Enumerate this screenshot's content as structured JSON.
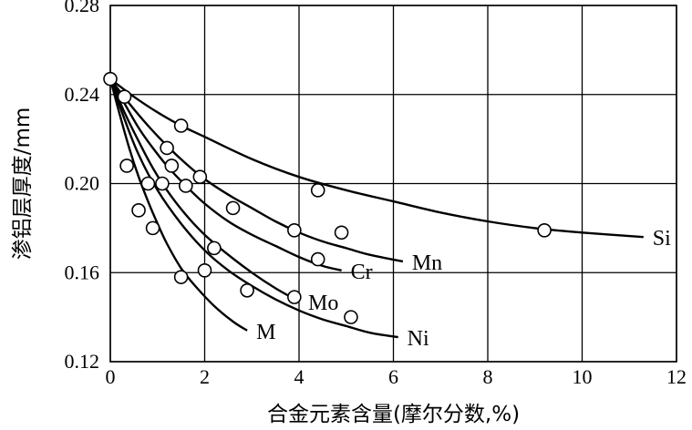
{
  "chart_data": {
    "type": "line",
    "xlabel": "合金元素含量(摩尔分数,%)",
    "ylabel": "渗铝层厚度/mm",
    "xlim": [
      0,
      12
    ],
    "ylim": [
      0.12,
      0.28
    ],
    "x_ticks": [
      "0",
      "2",
      "4",
      "6",
      "8",
      "10",
      "12"
    ],
    "y_ticks": [
      "0.12",
      "0.16",
      "0.20",
      "0.24",
      "0.28"
    ],
    "grid": true,
    "series": [
      {
        "name": "Si",
        "curve": [
          [
            0,
            0.247
          ],
          [
            0.5,
            0.239
          ],
          [
            1,
            0.232
          ],
          [
            1.5,
            0.226
          ],
          [
            2,
            0.221
          ],
          [
            3,
            0.211
          ],
          [
            4,
            0.203
          ],
          [
            5,
            0.197
          ],
          [
            6,
            0.192
          ],
          [
            7,
            0.187
          ],
          [
            8,
            0.183
          ],
          [
            9,
            0.18
          ],
          [
            10,
            0.178
          ],
          [
            11.3,
            0.176
          ]
        ],
        "points": [
          [
            0,
            0.247
          ],
          [
            1.5,
            0.226
          ],
          [
            4.4,
            0.197
          ],
          [
            9.2,
            0.179
          ]
        ]
      },
      {
        "name": "Mn",
        "curve": [
          [
            0,
            0.247
          ],
          [
            0.4,
            0.236
          ],
          [
            0.8,
            0.226
          ],
          [
            1.2,
            0.217
          ],
          [
            1.6,
            0.209
          ],
          [
            2,
            0.202
          ],
          [
            2.5,
            0.195
          ],
          [
            3,
            0.189
          ],
          [
            3.5,
            0.183
          ],
          [
            4,
            0.178
          ],
          [
            4.5,
            0.174
          ],
          [
            5,
            0.171
          ],
          [
            5.5,
            0.168
          ],
          [
            6.2,
            0.165
          ]
        ],
        "points": [
          [
            0.3,
            0.239
          ],
          [
            1.2,
            0.216
          ],
          [
            1.9,
            0.203
          ],
          [
            3.9,
            0.179
          ],
          [
            4.9,
            0.178
          ]
        ]
      },
      {
        "name": "Cr",
        "curve": [
          [
            0,
            0.247
          ],
          [
            0.3,
            0.236
          ],
          [
            0.6,
            0.225
          ],
          [
            0.9,
            0.216
          ],
          [
            1.2,
            0.208
          ],
          [
            1.6,
            0.199
          ],
          [
            2,
            0.191
          ],
          [
            2.5,
            0.183
          ],
          [
            3,
            0.177
          ],
          [
            3.5,
            0.172
          ],
          [
            4,
            0.167
          ],
          [
            4.5,
            0.163
          ],
          [
            4.9,
            0.161
          ]
        ],
        "points": [
          [
            1.3,
            0.208
          ],
          [
            1.6,
            0.199
          ],
          [
            2.6,
            0.189
          ],
          [
            4.4,
            0.166
          ]
        ]
      },
      {
        "name": "Mo",
        "curve": [
          [
            0,
            0.247
          ],
          [
            0.3,
            0.232
          ],
          [
            0.6,
            0.219
          ],
          [
            0.9,
            0.207
          ],
          [
            1.2,
            0.197
          ],
          [
            1.6,
            0.186
          ],
          [
            2,
            0.177
          ],
          [
            2.5,
            0.168
          ],
          [
            3,
            0.16
          ],
          [
            3.5,
            0.153
          ],
          [
            4,
            0.147
          ]
        ],
        "points": [
          [
            1.1,
            0.2
          ],
          [
            2.2,
            0.171
          ],
          [
            3.9,
            0.149
          ]
        ]
      },
      {
        "name": "Ni",
        "curve": [
          [
            0,
            0.247
          ],
          [
            0.3,
            0.229
          ],
          [
            0.6,
            0.213
          ],
          [
            1,
            0.197
          ],
          [
            1.5,
            0.182
          ],
          [
            2,
            0.17
          ],
          [
            2.5,
            0.161
          ],
          [
            3,
            0.154
          ],
          [
            3.5,
            0.148
          ],
          [
            4,
            0.143
          ],
          [
            4.5,
            0.139
          ],
          [
            5,
            0.136
          ],
          [
            5.5,
            0.133
          ],
          [
            6.1,
            0.131
          ]
        ],
        "points": [
          [
            0.8,
            0.2
          ],
          [
            2.0,
            0.161
          ],
          [
            2.9,
            0.152
          ],
          [
            5.1,
            0.14
          ]
        ]
      },
      {
        "name": "M",
        "curve": [
          [
            0,
            0.247
          ],
          [
            0.2,
            0.231
          ],
          [
            0.4,
            0.216
          ],
          [
            0.6,
            0.203
          ],
          [
            0.8,
            0.192
          ],
          [
            1,
            0.182
          ],
          [
            1.2,
            0.173
          ],
          [
            1.5,
            0.162
          ],
          [
            1.8,
            0.154
          ],
          [
            2.2,
            0.145
          ],
          [
            2.6,
            0.138
          ],
          [
            2.9,
            0.134
          ]
        ],
        "points": [
          [
            0.35,
            0.208
          ],
          [
            0.6,
            0.188
          ],
          [
            0.9,
            0.18
          ],
          [
            1.5,
            0.158
          ]
        ]
      }
    ]
  }
}
